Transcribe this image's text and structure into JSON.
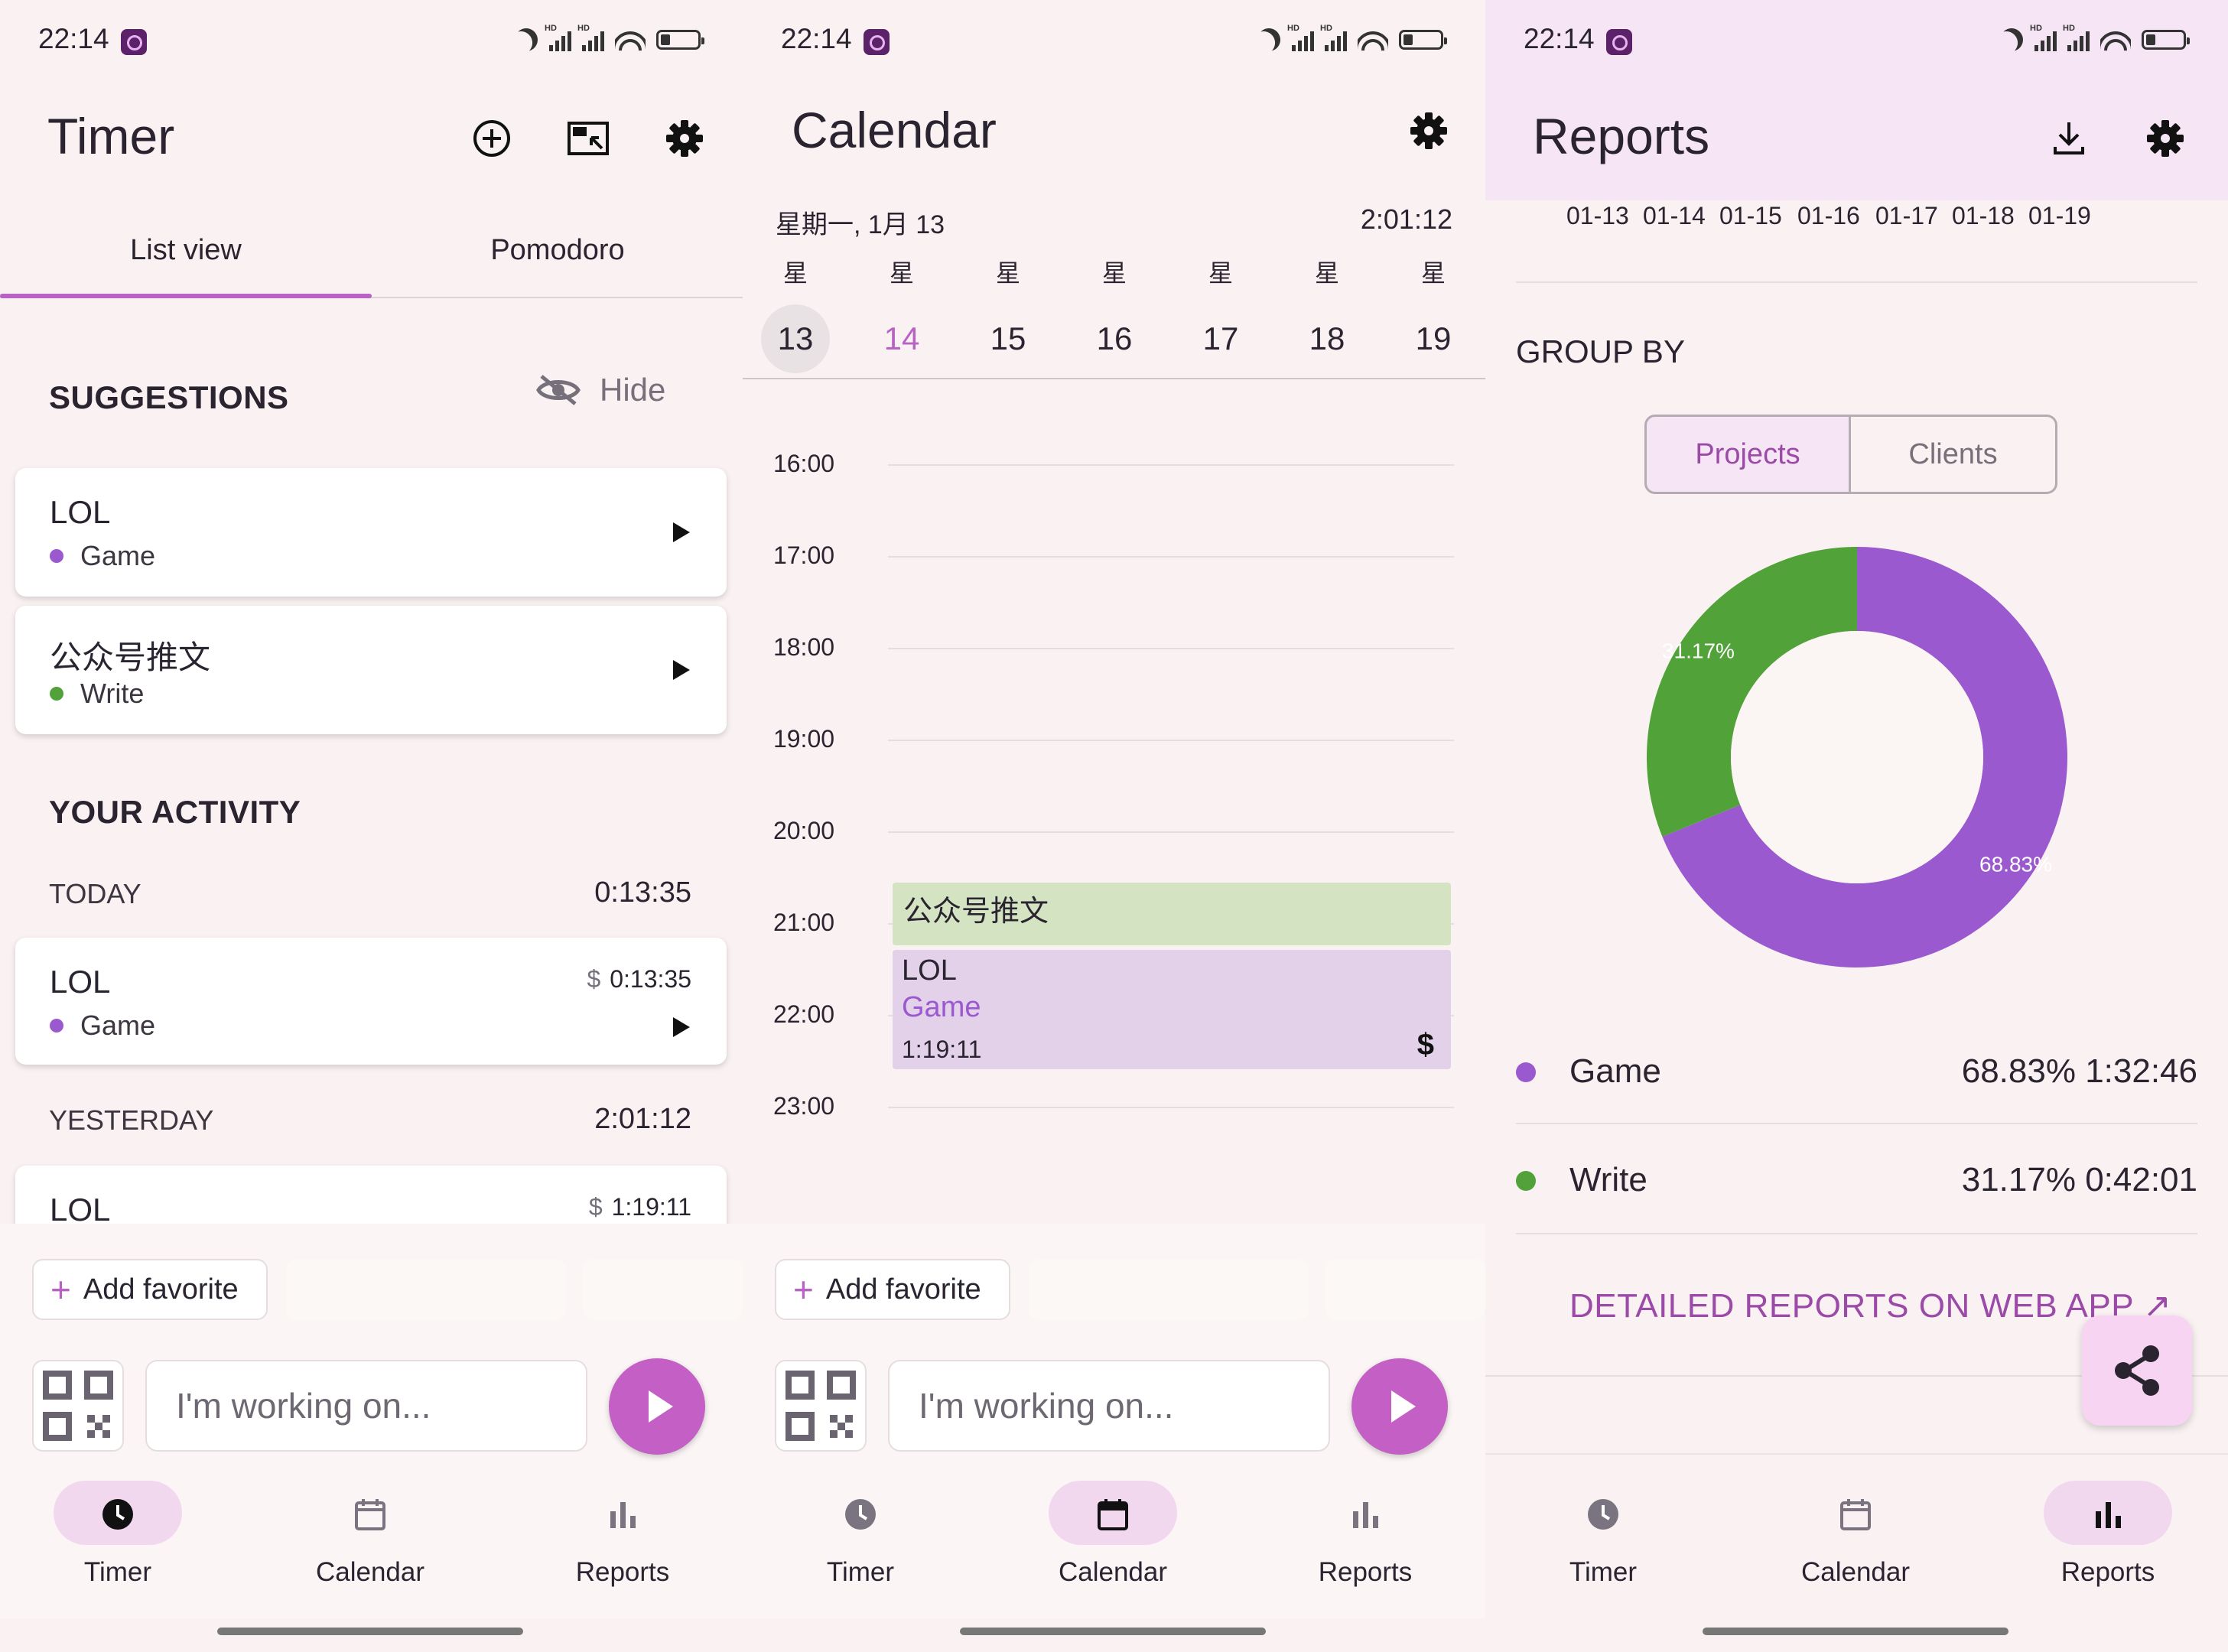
{
  "status_bar": {
    "time": "22:14"
  },
  "timer_screen": {
    "title": "Timer",
    "tabs": [
      "List view",
      "Pomodoro"
    ],
    "suggestions": {
      "heading": "SUGGESTIONS",
      "hide_label": "Hide",
      "items": [
        {
          "name": "LOL",
          "project": "Game",
          "color": "#9b59d0"
        },
        {
          "name": "公众号推文",
          "project": "Write",
          "color": "#52a23a"
        }
      ]
    },
    "activity": {
      "heading": "YOUR ACTIVITY",
      "groups": [
        {
          "label": "TODAY",
          "total": "0:13:35",
          "entries": [
            {
              "name": "LOL",
              "project": "Game",
              "duration": "0:13:35",
              "billable": "$"
            }
          ]
        },
        {
          "label": "YESTERDAY",
          "total": "2:01:12",
          "entries": [
            {
              "name": "LOL",
              "duration": "1:19:11",
              "billable": "$"
            }
          ]
        }
      ]
    }
  },
  "calendar_screen": {
    "title": "Calendar",
    "date_label": "星期一, 1月 13",
    "running_timer": "2:01:12",
    "week_abbr": "星",
    "days": [
      "13",
      "14",
      "15",
      "16",
      "17",
      "18",
      "19"
    ],
    "hours": [
      "16:00",
      "17:00",
      "18:00",
      "19:00",
      "20:00",
      "21:00",
      "22:00",
      "23:00"
    ],
    "events": [
      {
        "title": "公众号推文",
        "color": "#d4e3c1"
      },
      {
        "title": "LOL",
        "project": "Game",
        "duration": "1:19:11",
        "billable": "$",
        "color": "#e3d1ea"
      }
    ]
  },
  "reports_screen": {
    "title": "Reports",
    "date_strip": [
      "01-13",
      "01-14",
      "01-15",
      "01-16",
      "01-17",
      "01-18",
      "01-19"
    ],
    "group_by_label": "GROUP BY",
    "segments": [
      "Projects",
      "Clients"
    ],
    "donut": [
      {
        "label": "Game",
        "percent": 68.83,
        "percent_label": "68.83%",
        "color": "#9b59d0"
      },
      {
        "label": "Write",
        "percent": 31.17,
        "percent_label": "31.17%",
        "color": "#52a23a"
      }
    ],
    "legend": [
      {
        "name": "Game",
        "value": "68.83% 1:32:46",
        "color": "#9b59d0"
      },
      {
        "name": "Write",
        "value": "31.17% 0:42:01",
        "color": "#52a23a"
      }
    ],
    "web_link": "DETAILED REPORTS ON WEB APP ↗"
  },
  "bottom": {
    "add_favorite": "Add favorite",
    "input_placeholder": "I'm working on...",
    "nav": [
      "Timer",
      "Calendar",
      "Reports"
    ]
  },
  "colors": {
    "accent": "#c35fc5",
    "game": "#9b59d0",
    "write": "#52a23a"
  }
}
